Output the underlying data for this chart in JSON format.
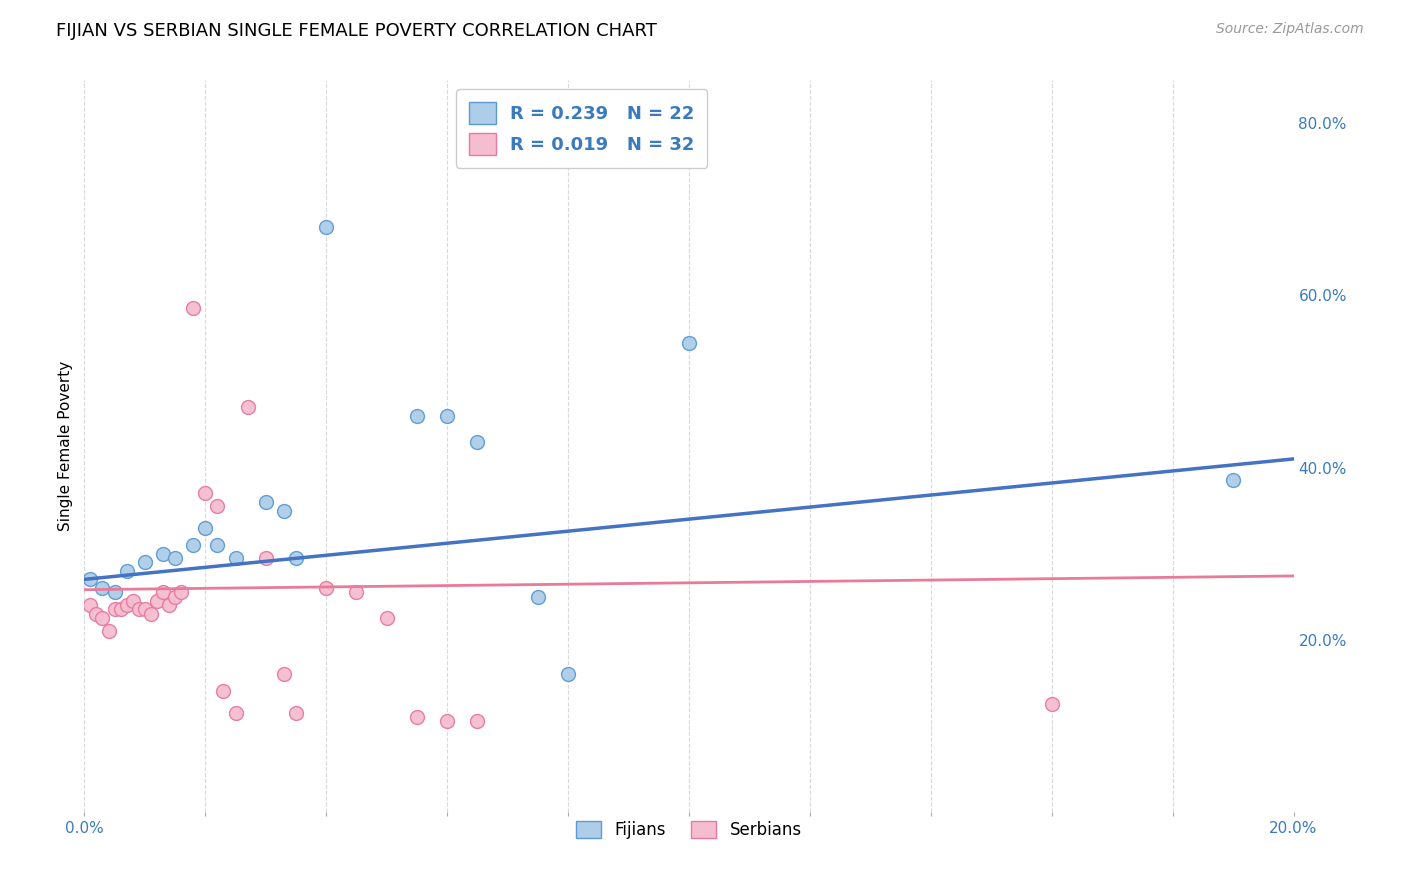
{
  "title": "FIJIAN VS SERBIAN SINGLE FEMALE POVERTY CORRELATION CHART",
  "source": "Source: ZipAtlas.com",
  "ylabel": "Single Female Poverty",
  "xlim": [
    0.0,
    0.2
  ],
  "ylim": [
    0.0,
    0.85
  ],
  "ytick_vals": [
    0.2,
    0.4,
    0.6,
    0.8
  ],
  "ytick_labels": [
    "20.0%",
    "40.0%",
    "60.0%",
    "80.0%"
  ],
  "xtick_vals": [
    0.0,
    0.02,
    0.04,
    0.06,
    0.08,
    0.1,
    0.12,
    0.14,
    0.16,
    0.18,
    0.2
  ],
  "xtick_labels": [
    "0.0%",
    "",
    "",
    "",
    "",
    "",
    "",
    "",
    "",
    "",
    "20.0%"
  ],
  "fijian_color": "#aecde8",
  "serbian_color": "#f5bdd0",
  "fijian_edge_color": "#5b9bd5",
  "serbian_edge_color": "#e879a0",
  "fijian_line_color": "#4472c4",
  "serbian_line_color": "#e87a9a",
  "fijian_R": 0.239,
  "fijian_N": 22,
  "serbian_R": 0.019,
  "serbian_N": 32,
  "fijian_points": [
    [
      0.001,
      0.27
    ],
    [
      0.003,
      0.26
    ],
    [
      0.005,
      0.255
    ],
    [
      0.007,
      0.28
    ],
    [
      0.01,
      0.29
    ],
    [
      0.013,
      0.3
    ],
    [
      0.015,
      0.295
    ],
    [
      0.018,
      0.31
    ],
    [
      0.02,
      0.33
    ],
    [
      0.022,
      0.31
    ],
    [
      0.025,
      0.295
    ],
    [
      0.03,
      0.36
    ],
    [
      0.033,
      0.35
    ],
    [
      0.035,
      0.295
    ],
    [
      0.04,
      0.68
    ],
    [
      0.055,
      0.46
    ],
    [
      0.06,
      0.46
    ],
    [
      0.065,
      0.43
    ],
    [
      0.075,
      0.25
    ],
    [
      0.08,
      0.16
    ],
    [
      0.1,
      0.545
    ],
    [
      0.19,
      0.385
    ]
  ],
  "serbian_points": [
    [
      0.001,
      0.24
    ],
    [
      0.002,
      0.23
    ],
    [
      0.003,
      0.225
    ],
    [
      0.004,
      0.21
    ],
    [
      0.005,
      0.235
    ],
    [
      0.006,
      0.235
    ],
    [
      0.007,
      0.24
    ],
    [
      0.008,
      0.245
    ],
    [
      0.009,
      0.235
    ],
    [
      0.01,
      0.235
    ],
    [
      0.011,
      0.23
    ],
    [
      0.012,
      0.245
    ],
    [
      0.013,
      0.255
    ],
    [
      0.014,
      0.24
    ],
    [
      0.015,
      0.25
    ],
    [
      0.016,
      0.255
    ],
    [
      0.018,
      0.585
    ],
    [
      0.02,
      0.37
    ],
    [
      0.022,
      0.355
    ],
    [
      0.023,
      0.14
    ],
    [
      0.025,
      0.115
    ],
    [
      0.027,
      0.47
    ],
    [
      0.03,
      0.295
    ],
    [
      0.033,
      0.16
    ],
    [
      0.035,
      0.115
    ],
    [
      0.04,
      0.26
    ],
    [
      0.045,
      0.255
    ],
    [
      0.05,
      0.225
    ],
    [
      0.055,
      0.11
    ],
    [
      0.06,
      0.105
    ],
    [
      0.065,
      0.105
    ],
    [
      0.16,
      0.125
    ]
  ],
  "fijian_intercept": 0.27,
  "fijian_slope": 0.7,
  "serbian_intercept": 0.258,
  "serbian_slope": 0.08,
  "background_color": "#ffffff",
  "grid_color": "#d0d0d0",
  "title_fontsize": 13,
  "source_fontsize": 10,
  "axis_label_fontsize": 11,
  "tick_fontsize": 11,
  "legend_color": "#3a7bbf",
  "marker_size": 100
}
